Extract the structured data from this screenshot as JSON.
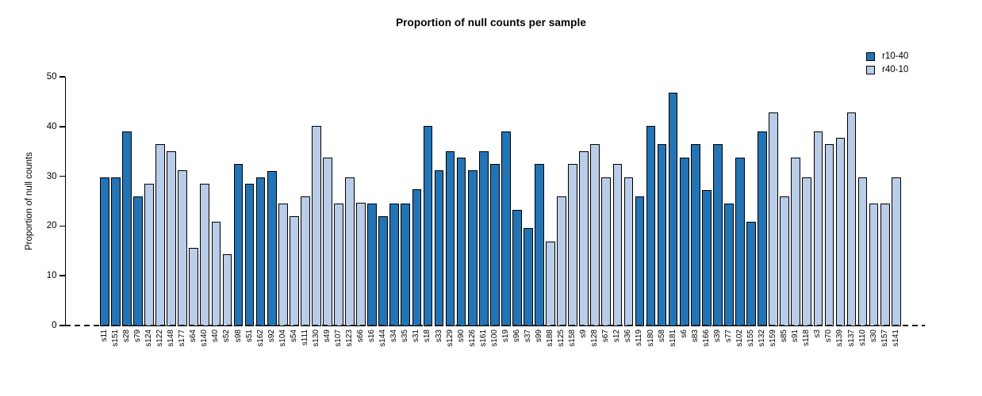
{
  "title": "Proportion of null counts per sample",
  "y_axis": {
    "label": "Proportion of null counts",
    "ticks": [
      0,
      10,
      20,
      30,
      40,
      50
    ]
  },
  "legend": {
    "items": [
      {
        "label": "r10-40",
        "color": "#2374b5"
      },
      {
        "label": "r40-10",
        "color": "#b9cce8"
      }
    ]
  },
  "chart_data": {
    "type": "bar",
    "title": "Proportion of null counts per sample",
    "xlabel": "",
    "ylabel": "Proportion of null counts",
    "ylim": [
      0,
      50
    ],
    "grid": false,
    "legend_position": "top-right",
    "series_names": [
      "r10-40",
      "r40-10"
    ],
    "categories": [
      "s11",
      "s151",
      "s28",
      "s79",
      "s124",
      "s122",
      "s148",
      "s177",
      "s64",
      "s140",
      "s40",
      "s52",
      "s98",
      "s51",
      "s162",
      "s92",
      "s104",
      "s54",
      "s111",
      "s130",
      "s49",
      "s107",
      "s123",
      "s66",
      "s16",
      "s144",
      "s34",
      "s35",
      "s31",
      "s18",
      "s33",
      "s129",
      "s90",
      "s126",
      "s161",
      "s100",
      "s19",
      "s96",
      "s37",
      "s99",
      "s188",
      "s125",
      "s158",
      "s9",
      "s128",
      "s67",
      "s12",
      "s36",
      "s119",
      "s180",
      "s58",
      "s181",
      "s6",
      "s83",
      "s166",
      "s39",
      "s77",
      "s102",
      "s155",
      "s132",
      "s159",
      "s85",
      "s91",
      "s118",
      "s3",
      "s70",
      "s139",
      "s137",
      "s110",
      "s30",
      "s157",
      "s141"
    ],
    "values": [
      29.7,
      29.7,
      39.0,
      26.0,
      28.5,
      36.4,
      35.0,
      31.2,
      15.6,
      28.5,
      20.8,
      14.3,
      32.4,
      28.5,
      29.7,
      31.1,
      24.5,
      22.0,
      26.0,
      40.2,
      33.8,
      24.5,
      29.8,
      24.6,
      24.5,
      22.0,
      24.5,
      24.5,
      27.3,
      40.2,
      31.2,
      35.0,
      33.7,
      31.2,
      35.0,
      32.5,
      39.0,
      23.3,
      19.5,
      32.5,
      16.8,
      26.0,
      32.5,
      35.1,
      36.4,
      29.8,
      32.5,
      29.8,
      26.0,
      40.2,
      36.4,
      46.8,
      33.7,
      36.4,
      27.2,
      36.4,
      24.5,
      33.7,
      20.8,
      39.0,
      42.9,
      26.0,
      33.8,
      29.8,
      39.0,
      36.4,
      37.7,
      42.9,
      29.8,
      24.5,
      24.5,
      29.8
    ],
    "groups": [
      "r10-40",
      "r10-40",
      "r10-40",
      "r10-40",
      "r40-10",
      "r40-10",
      "r40-10",
      "r40-10",
      "r40-10",
      "r40-10",
      "r40-10",
      "r40-10",
      "r10-40",
      "r10-40",
      "r10-40",
      "r10-40",
      "r40-10",
      "r40-10",
      "r40-10",
      "r40-10",
      "r40-10",
      "r40-10",
      "r40-10",
      "r40-10",
      "r10-40",
      "r10-40",
      "r10-40",
      "r10-40",
      "r10-40",
      "r10-40",
      "r10-40",
      "r10-40",
      "r10-40",
      "r10-40",
      "r10-40",
      "r10-40",
      "r10-40",
      "r10-40",
      "r10-40",
      "r10-40",
      "r40-10",
      "r40-10",
      "r40-10",
      "r40-10",
      "r40-10",
      "r40-10",
      "r40-10",
      "r40-10",
      "r10-40",
      "r10-40",
      "r10-40",
      "r10-40",
      "r10-40",
      "r10-40",
      "r10-40",
      "r10-40",
      "r10-40",
      "r10-40",
      "r10-40",
      "r10-40",
      "r40-10",
      "r40-10",
      "r40-10",
      "r40-10",
      "r40-10",
      "r40-10",
      "r40-10",
      "r40-10",
      "r40-10",
      "r40-10",
      "r40-10",
      "r40-10"
    ]
  }
}
